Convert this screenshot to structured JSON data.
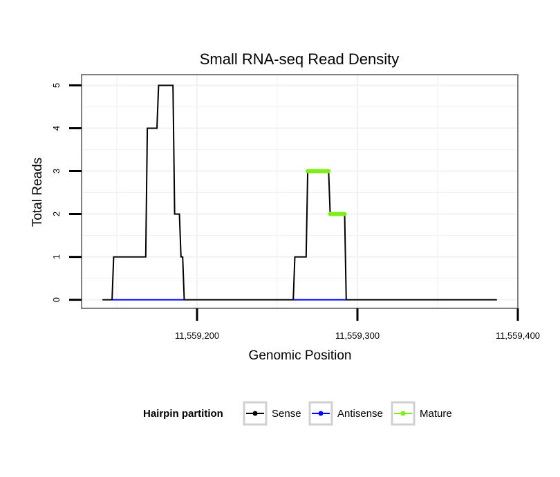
{
  "chart_data": {
    "type": "line",
    "title": "Small RNA-seq Read Density",
    "xlabel": "Genomic Position",
    "ylabel": "Total Reads",
    "xlim": [
      11559128,
      11559400
    ],
    "ylim": [
      -0.2,
      5.25
    ],
    "xticks": [
      {
        "value": 11559200,
        "label": "11,559,200"
      },
      {
        "value": 11559300,
        "label": "11,559,300"
      },
      {
        "value": 11559400,
        "label": "11,559,400"
      }
    ],
    "yticks": [
      {
        "value": 0,
        "label": "0"
      },
      {
        "value": 1,
        "label": "1"
      },
      {
        "value": 2,
        "label": "2"
      },
      {
        "value": 3,
        "label": "3"
      },
      {
        "value": 4,
        "label": "4"
      },
      {
        "value": 5,
        "label": "5"
      }
    ],
    "grid": true,
    "legend": {
      "title": "Hairpin partition",
      "position": "bottom"
    },
    "series": [
      {
        "name": "Sense",
        "color": "#000000",
        "x": [
          11559141,
          11559147,
          11559148,
          11559168,
          11559169,
          11559175,
          11559176,
          11559185,
          11559186,
          11559189,
          11559190,
          11559191,
          11559192,
          11559260,
          11559261,
          11559268,
          11559269,
          11559282,
          11559283,
          11559292,
          11559293,
          11559387
        ],
        "y": [
          0,
          0,
          1,
          1,
          4,
          4,
          5,
          5,
          2,
          2,
          1,
          1,
          0,
          0,
          1,
          1,
          3,
          3,
          2,
          2,
          0,
          0
        ]
      },
      {
        "name": "Antisense",
        "color": "#0000ff",
        "x": [
          11559147,
          11559192,
          11559260,
          11559293
        ],
        "y": [
          0,
          0,
          0,
          0
        ]
      },
      {
        "name": "Mature",
        "color": "#7cee18",
        "segments": [
          {
            "x": [
              11559269,
              11559282
            ],
            "y": [
              3,
              3
            ]
          },
          {
            "x": [
              11559283,
              11559292
            ],
            "y": [
              2,
              2
            ]
          }
        ]
      }
    ]
  }
}
